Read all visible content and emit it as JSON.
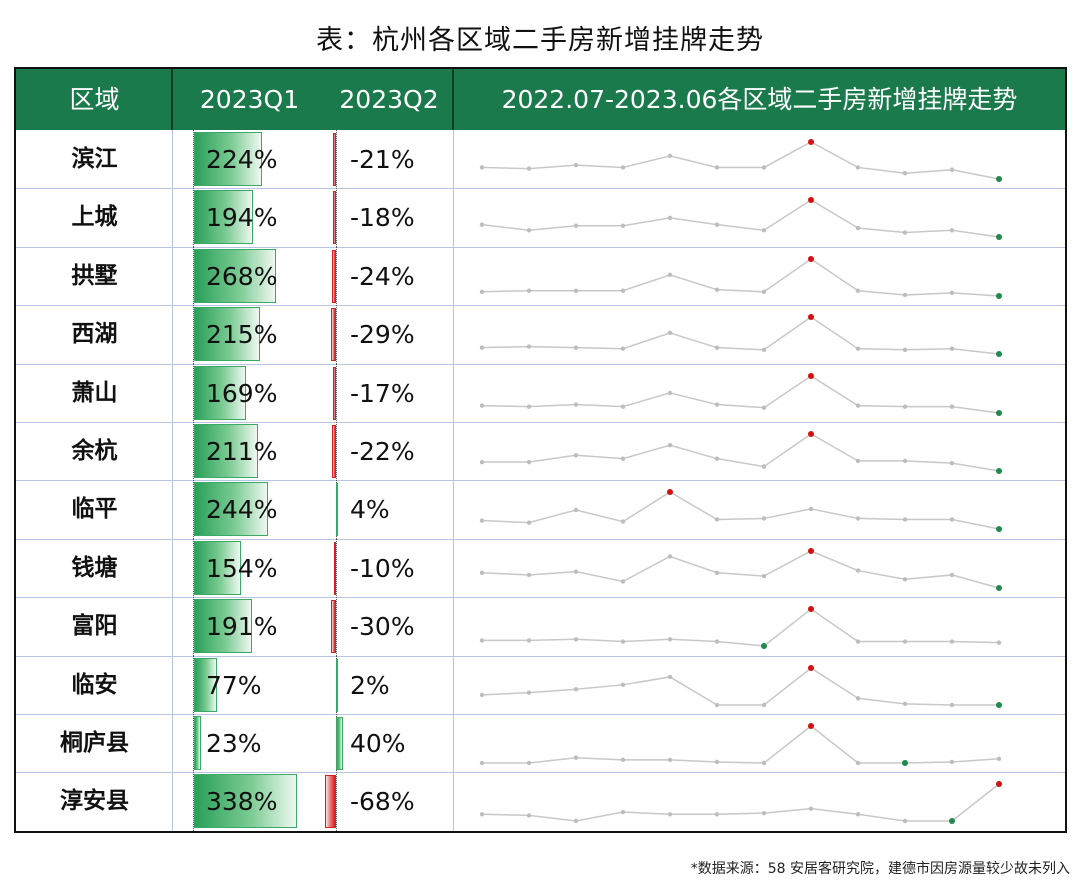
{
  "title": "表：杭州各区域二手房新增挂牌走势",
  "header": {
    "col_region": "区域",
    "col_q1": "2023Q1",
    "col_q2": "2023Q2",
    "col_trend": "2022.07-2023.06各区域二手房新增挂牌走势"
  },
  "colors": {
    "header_bg": "#1a7a4c",
    "positive": "#2aa05a",
    "negative": "#d91a1a",
    "spark_line": "#c8c8c8"
  },
  "chart_data": {
    "type": "table",
    "columns": [
      "区域",
      "2023Q1",
      "2023Q2",
      "2022.07-2023.06各区域二手房新增挂牌走势"
    ],
    "rows": [
      {
        "region": "滨江",
        "q1": 224,
        "q1_label": "224%",
        "q2": -21,
        "q2_label": "-21%",
        "trend": [
          1.0,
          0.9,
          1.2,
          1.0,
          2.0,
          1.0,
          1.0,
          3.2,
          1.0,
          0.5,
          0.8,
          0.0
        ]
      },
      {
        "region": "上城",
        "q1": 194,
        "q1_label": "194%",
        "q2": -18,
        "q2_label": "-18%",
        "trend": [
          1.1,
          0.6,
          1.0,
          1.0,
          1.7,
          1.1,
          0.6,
          3.3,
          0.8,
          0.4,
          0.6,
          0.0
        ]
      },
      {
        "region": "拱墅",
        "q1": 268,
        "q1_label": "268%",
        "q2": -24,
        "q2_label": "-24%",
        "trend": [
          0.4,
          0.5,
          0.5,
          0.5,
          2.0,
          0.6,
          0.4,
          3.5,
          0.5,
          0.1,
          0.3,
          0.0
        ]
      },
      {
        "region": "西湖",
        "q1": 215,
        "q1_label": "215%",
        "q2": -29,
        "q2_label": "-29%",
        "trend": [
          0.6,
          0.7,
          0.6,
          0.5,
          2.0,
          0.6,
          0.4,
          3.5,
          0.5,
          0.4,
          0.5,
          0.0
        ]
      },
      {
        "region": "萧山",
        "q1": 169,
        "q1_label": "169%",
        "q2": -17,
        "q2_label": "-17%",
        "trend": [
          0.7,
          0.6,
          0.8,
          0.6,
          1.9,
          0.8,
          0.5,
          3.5,
          0.7,
          0.6,
          0.6,
          0.0
        ]
      },
      {
        "region": "余杭",
        "q1": 211,
        "q1_label": "211%",
        "q2": -22,
        "q2_label": "-22%",
        "trend": [
          0.8,
          0.8,
          1.4,
          1.1,
          2.3,
          1.1,
          0.4,
          3.3,
          0.9,
          0.9,
          0.7,
          0.0
        ]
      },
      {
        "region": "临平",
        "q1": 244,
        "q1_label": "244%",
        "q2": 4,
        "q2_label": "4%",
        "trend": [
          0.8,
          0.6,
          1.8,
          0.7,
          3.5,
          0.9,
          1.0,
          1.9,
          1.0,
          0.9,
          0.9,
          0.0
        ]
      },
      {
        "region": "钱塘",
        "q1": 154,
        "q1_label": "154%",
        "q2": -10,
        "q2_label": "-10%",
        "trend": [
          1.4,
          1.2,
          1.5,
          0.6,
          2.9,
          1.4,
          1.1,
          3.4,
          1.6,
          0.8,
          1.2,
          0.0
        ]
      },
      {
        "region": "富阳",
        "q1": 191,
        "q1_label": "191%",
        "q2": -30,
        "q2_label": "-30%",
        "trend": [
          0.5,
          0.5,
          0.6,
          0.4,
          0.6,
          0.4,
          0.0,
          3.3,
          0.4,
          0.4,
          0.4,
          0.3
        ]
      },
      {
        "region": "临安",
        "q1": 77,
        "q1_label": "77%",
        "q2": 2,
        "q2_label": "2%",
        "trend": [
          0.9,
          1.1,
          1.4,
          1.8,
          2.5,
          0.0,
          0.0,
          3.3,
          0.6,
          0.1,
          0.0,
          0.0
        ]
      },
      {
        "region": "桐庐县",
        "q1": 23,
        "q1_label": "23%",
        "q2": 40,
        "q2_label": "40%",
        "trend": [
          0.0,
          0.0,
          0.5,
          0.3,
          0.3,
          0.1,
          0.0,
          3.5,
          0.0,
          0.0,
          0.1,
          0.4
        ]
      },
      {
        "region": "淳安县",
        "q1": 338,
        "q1_label": "338%",
        "q2": -68,
        "q2_label": "-68%",
        "trend": [
          0.6,
          0.5,
          0.0,
          0.8,
          0.6,
          0.6,
          0.7,
          1.1,
          0.6,
          0.0,
          0.0,
          3.3
        ]
      }
    ]
  },
  "footnote": "*数据来源：58 安居客研究院，建德市因房源量较少故未列入"
}
